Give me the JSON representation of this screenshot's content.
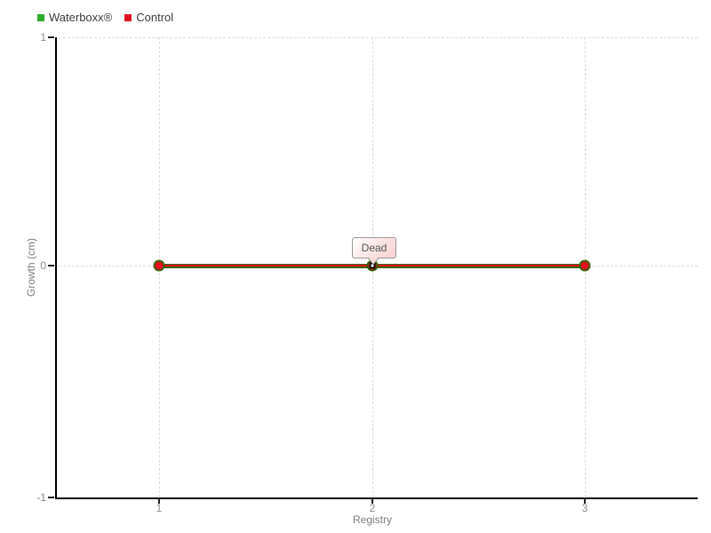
{
  "legend": {
    "items": [
      {
        "label": "Waterboxx®",
        "color": "#2faa2f"
      },
      {
        "label": "Control",
        "color": "#e01021"
      }
    ]
  },
  "axes": {
    "y_title": "Growth (cm)",
    "x_title": "Registry",
    "y_ticks": [
      "1",
      "0",
      "-1"
    ],
    "x_ticks": [
      "1",
      "2",
      "3"
    ]
  },
  "tooltip": {
    "text": "Dead"
  },
  "colors": {
    "green_line": "#3e650d",
    "red_line": "#d91222",
    "marker_fill": "#e01021",
    "marker_ring": "#3e5f0c",
    "grid": "#dcdcdc"
  },
  "chart_data": {
    "type": "line",
    "title": "",
    "xlabel": "Registry",
    "ylabel": "Growth (cm)",
    "x": [
      1,
      2,
      3
    ],
    "categories": [
      "1",
      "2",
      "3"
    ],
    "series": [
      {
        "name": "Waterboxx®",
        "color": "#2faa2f",
        "values": [
          0,
          0,
          0
        ]
      },
      {
        "name": "Control",
        "color": "#e01021",
        "values": [
          0,
          0,
          0
        ]
      }
    ],
    "ylim": [
      -1,
      1
    ],
    "yticks": [
      -1,
      0,
      1
    ],
    "xlim": [
      1,
      3
    ],
    "grid": true,
    "legend_position": "top-left",
    "annotations": [
      {
        "text": "Dead",
        "x": 2,
        "y": 0
      }
    ]
  }
}
